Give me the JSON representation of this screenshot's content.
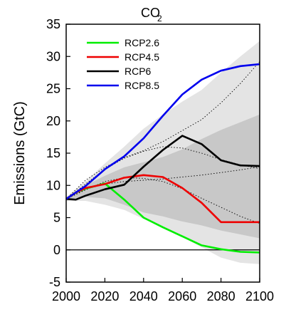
{
  "chart_data": {
    "type": "line",
    "title": "CO",
    "title_subscript": "2",
    "ylabel": "Emissions (GtC)",
    "xlabel": "",
    "xlim": [
      2000,
      2100
    ],
    "ylim": [
      -5,
      35
    ],
    "xticks": [
      2000,
      2020,
      2040,
      2060,
      2080,
      2100
    ],
    "yticks": [
      -5,
      0,
      5,
      10,
      15,
      20,
      25,
      30,
      35
    ],
    "zero_line": true,
    "legend_position": "top-left",
    "series": [
      {
        "name": "RCP2.6",
        "color": "#00ee00",
        "x": [
          2000,
          2005,
          2010,
          2020,
          2030,
          2040,
          2050,
          2060,
          2070,
          2080,
          2090,
          2100
        ],
        "y": [
          7.9,
          8.9,
          9.5,
          10.3,
          7.8,
          5.0,
          3.5,
          2.1,
          0.7,
          0.1,
          -0.3,
          -0.4
        ]
      },
      {
        "name": "RCP4.5",
        "color": "#ee0000",
        "x": [
          2000,
          2005,
          2010,
          2020,
          2030,
          2040,
          2050,
          2060,
          2070,
          2080,
          2090,
          2100
        ],
        "y": [
          7.9,
          8.9,
          9.6,
          10.2,
          11.2,
          11.6,
          11.3,
          9.6,
          7.3,
          4.3,
          4.3,
          4.3
        ]
      },
      {
        "name": "RCP6",
        "color": "#000000",
        "x": [
          2000,
          2005,
          2010,
          2020,
          2030,
          2040,
          2050,
          2060,
          2070,
          2080,
          2090,
          2100
        ],
        "y": [
          7.9,
          7.8,
          8.4,
          9.4,
          10.1,
          12.9,
          15.5,
          17.7,
          16.4,
          13.9,
          13.1,
          13.0
        ]
      },
      {
        "name": "RCP8.5",
        "color": "#0000ee",
        "x": [
          2000,
          2005,
          2010,
          2020,
          2030,
          2040,
          2050,
          2060,
          2070,
          2080,
          2090,
          2100
        ],
        "y": [
          7.9,
          8.9,
          9.9,
          12.5,
          14.5,
          17.3,
          20.8,
          24.1,
          26.4,
          27.8,
          28.5,
          28.8
        ]
      }
    ],
    "shaded_ranges": [
      {
        "fill": "#e4e4e4",
        "x": [
          2000,
          2010,
          2020,
          2030,
          2040,
          2050,
          2060,
          2070,
          2080,
          2090,
          2100
        ],
        "lower": [
          7.6,
          7.6,
          7.0,
          6.2,
          4.8,
          3.6,
          2.0,
          0.4,
          -1.2,
          -2.0,
          -2.2
        ],
        "upper": [
          8.2,
          10.6,
          13.4,
          16.0,
          18.8,
          21.0,
          23.0,
          24.8,
          27.5,
          30.0,
          32.4
        ]
      },
      {
        "fill": "#c8c8c8",
        "x": [
          2000,
          2010,
          2020,
          2030,
          2040,
          2050,
          2060,
          2070,
          2080,
          2090,
          2100
        ],
        "lower": [
          7.9,
          8.2,
          8.0,
          7.0,
          5.8,
          5.2,
          4.4,
          3.8,
          3.0,
          2.4,
          1.8
        ],
        "upper": [
          7.9,
          10.0,
          11.5,
          12.8,
          13.6,
          14.4,
          15.6,
          17.2,
          18.6,
          19.8,
          21.0
        ]
      }
    ],
    "reference_lines": [
      {
        "style": "dotted",
        "x": [
          2000,
          2010,
          2020,
          2030,
          2040,
          2050,
          2060,
          2070,
          2080,
          2090,
          2100
        ],
        "y": [
          7.9,
          10.8,
          12.8,
          14.3,
          15.4,
          16.8,
          18.5,
          20.2,
          22.8,
          25.8,
          29.2
        ]
      },
      {
        "style": "dotted",
        "x": [
          2000,
          2010,
          2020,
          2030,
          2040,
          2050,
          2060,
          2070,
          2080,
          2090,
          2100
        ],
        "y": [
          7.9,
          10.2,
          12.5,
          14.2,
          15.3,
          16.0,
          15.8,
          15.0,
          14.0,
          13.2,
          12.6
        ]
      },
      {
        "style": "dotted",
        "x": [
          2000,
          2010,
          2020,
          2030,
          2040,
          2050,
          2060,
          2070,
          2080,
          2090,
          2100
        ],
        "y": [
          7.9,
          9.4,
          10.2,
          10.6,
          10.8,
          11.0,
          11.3,
          11.6,
          12.0,
          12.4,
          12.9
        ]
      },
      {
        "style": "dotted",
        "x": [
          2000,
          2010,
          2020,
          2030,
          2040,
          2050,
          2060,
          2070,
          2080,
          2090,
          2100
        ],
        "y": [
          7.9,
          9.3,
          10.6,
          11.2,
          11.1,
          10.6,
          9.5,
          8.0,
          6.6,
          5.2,
          4.1
        ]
      }
    ]
  }
}
